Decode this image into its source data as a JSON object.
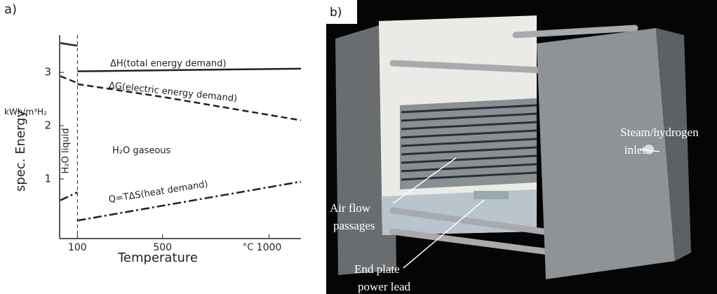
{
  "panel_labels": [
    "a)",
    "b)"
  ],
  "chart_data": {
    "type": "line",
    "y_label": "spec. Energy",
    "y_unit": "kWh/m³H₂",
    "x_label": "Temperature",
    "x_unit": "°C",
    "xlim": [
      0,
      1150
    ],
    "ylim": [
      0,
      3.7
    ],
    "xticks": [
      100,
      500,
      1000
    ],
    "yticks": [
      1,
      2,
      3
    ],
    "phase_boundary": 100,
    "annotations": [
      "H₂O liquid",
      "H₂O gaseous"
    ],
    "series": [
      {
        "name": "ΔH(total energy demand)",
        "color": "#222222",
        "x": [
          20,
          100,
          100,
          100,
          1150
        ],
        "values": [
          3.55,
          3.5,
          null,
          3.02,
          3.07
        ]
      },
      {
        "name": "ΔG(electric energy demand)",
        "color": "#222222",
        "x": [
          20,
          100,
          100,
          100,
          500,
          1150
        ],
        "values": [
          2.93,
          2.8,
          null,
          2.78,
          2.54,
          2.1
        ]
      },
      {
        "name": "Q=TΔS(heat demand)",
        "color": "#222222",
        "x": [
          20,
          100,
          100,
          100,
          1150
        ],
        "values": [
          0.6,
          0.75,
          null,
          0.22,
          0.95
        ]
      }
    ]
  },
  "photo": {
    "annotations": [
      {
        "lines": [
          "Steam/hydrogen",
          "inlet"
        ]
      },
      {
        "lines": [
          "Air flow",
          "passages"
        ]
      },
      {
        "lines": [
          "End plate",
          "power lead"
        ]
      }
    ]
  }
}
